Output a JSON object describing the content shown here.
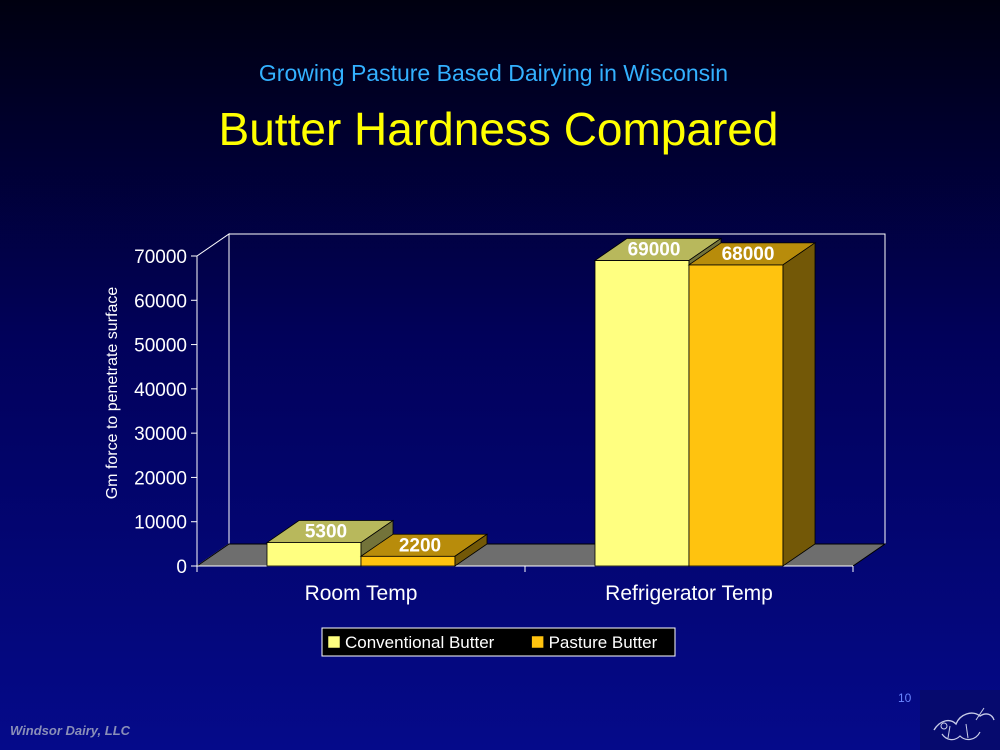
{
  "header": {
    "subtitle": "Growing Pasture Based Dairying in Wisconsin",
    "title": "Butter Hardness Compared"
  },
  "footer": {
    "company": "Windsor Dairy, LLC",
    "page_number": "10"
  },
  "chart_data": {
    "type": "bar",
    "categories": [
      "Room Temp",
      "Refrigerator Temp"
    ],
    "series": [
      {
        "name": "Conventional Butter",
        "values": [
          5300,
          69000
        ],
        "color": "#ffff80"
      },
      {
        "name": "Pasture Butter",
        "values": [
          2200,
          68000
        ],
        "color": "#ffc30f"
      }
    ],
    "data_labels": [
      [
        "5300",
        "69000"
      ],
      [
        "2200",
        "68000"
      ]
    ],
    "ylabel": "Gm force to penetrate surface",
    "xlabel": "",
    "ylim": [
      0,
      70000
    ],
    "yticks": [
      "0",
      "10000",
      "20000",
      "30000",
      "40000",
      "50000",
      "60000",
      "70000"
    ],
    "grid": false,
    "legend_position": "bottom",
    "floor_color": "#6e6e6e",
    "three_d": true
  }
}
